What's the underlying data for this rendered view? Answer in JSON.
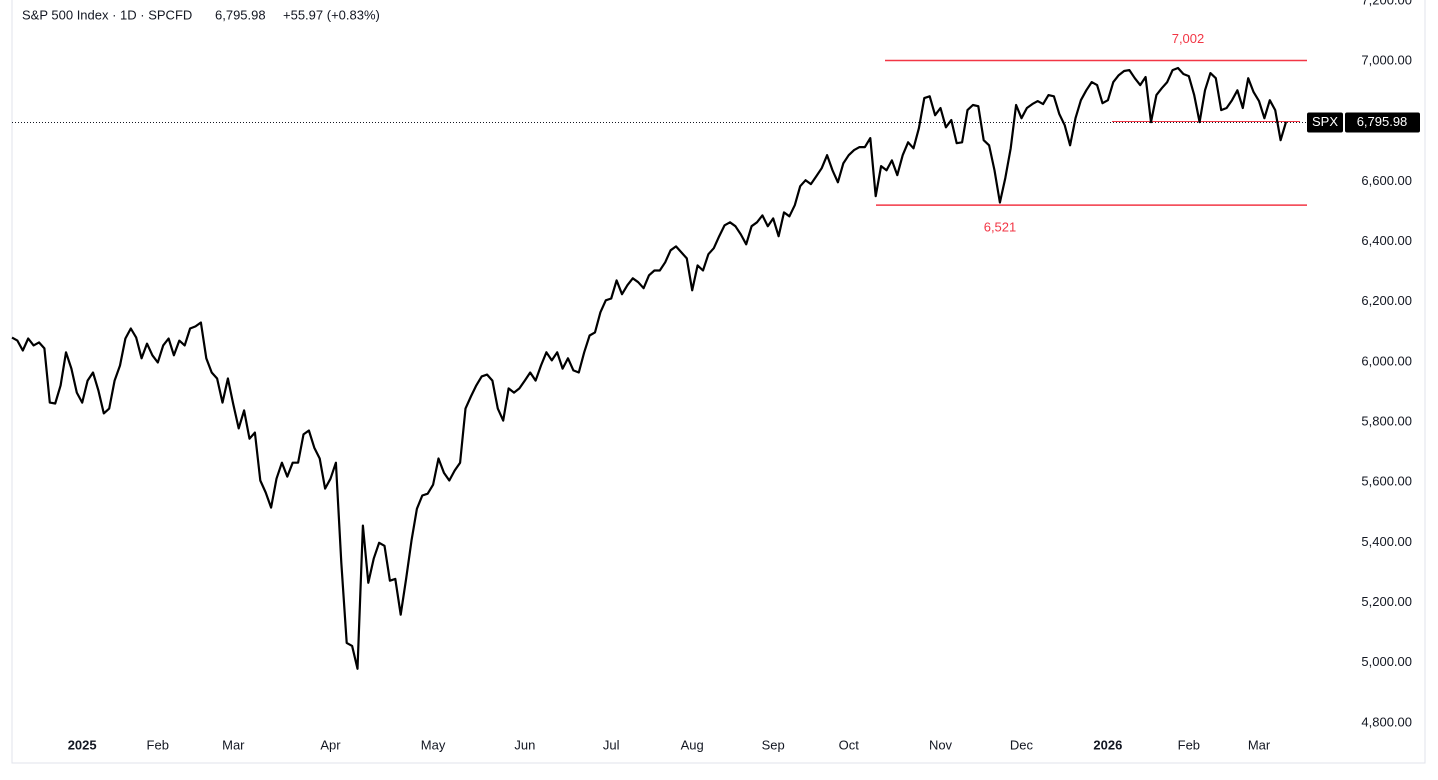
{
  "chart_data": {
    "type": "line",
    "title": {
      "symbol": "S&P 500 Index · 1D · SPCFD",
      "last": "6,795.98",
      "change": "+55.97 (+0.83%)"
    },
    "categories": [
      null,
      null,
      null,
      null,
      null,
      null,
      null,
      null,
      null,
      null,
      null,
      null,
      null,
      "2025",
      null,
      null,
      null,
      null,
      null,
      null,
      null,
      null,
      null,
      null,
      null,
      null,
      null,
      "Feb",
      null,
      null,
      null,
      null,
      null,
      null,
      null,
      null,
      null,
      null,
      null,
      null,
      null,
      "Mar",
      null,
      null,
      null,
      null,
      null,
      null,
      null,
      null,
      null,
      null,
      null,
      null,
      null,
      null,
      null,
      null,
      null,
      "Apr",
      null,
      null,
      null,
      null,
      null,
      null,
      null,
      null,
      null,
      null,
      null,
      null,
      null,
      null,
      null,
      null,
      null,
      null,
      "May",
      null,
      null,
      null,
      null,
      null,
      null,
      null,
      null,
      null,
      null,
      null,
      null,
      null,
      null,
      null,
      null,
      "Jun",
      null,
      null,
      null,
      null,
      null,
      null,
      null,
      null,
      null,
      null,
      null,
      null,
      null,
      null,
      null,
      "Jul",
      null,
      null,
      null,
      null,
      null,
      null,
      null,
      null,
      null,
      null,
      null,
      null,
      null,
      null,
      "Aug",
      null,
      null,
      null,
      null,
      null,
      null,
      null,
      null,
      null,
      null,
      null,
      null,
      null,
      null,
      "Sep",
      null,
      null,
      null,
      null,
      null,
      null,
      null,
      null,
      null,
      null,
      null,
      null,
      null,
      "Oct",
      null,
      null,
      null,
      null,
      null,
      null,
      null,
      null,
      null,
      null,
      null,
      null,
      null,
      null,
      null,
      null,
      "Nov",
      null,
      null,
      null,
      null,
      null,
      null,
      null,
      null,
      null,
      null,
      null,
      null,
      null,
      null,
      "Dec",
      null,
      null,
      null,
      null,
      null,
      null,
      null,
      null,
      null,
      null,
      null,
      null,
      null,
      null,
      null,
      "2026",
      null,
      null,
      null,
      null,
      null,
      null,
      null,
      null,
      null,
      null,
      null,
      null,
      null,
      null,
      "Feb",
      null,
      null,
      null,
      null,
      null,
      null,
      null,
      null,
      null,
      null,
      null,
      null,
      "Mar",
      null,
      null,
      null,
      null,
      null
    ],
    "series": [
      {
        "name": "SPX",
        "color": "#000000",
        "values": [
          6081,
          6071,
          6038,
          6078,
          6055,
          6065,
          6045,
          5865,
          5862,
          5922,
          6032,
          5978,
          5898,
          5865,
          5938,
          5965,
          5905,
          5829,
          5845,
          5938,
          5988,
          6078,
          6111,
          6081,
          6012,
          6061,
          6022,
          5998,
          6055,
          6078,
          6022,
          6071,
          6055,
          6111,
          6118,
          6131,
          6012,
          5965,
          5945,
          5865,
          5945,
          5859,
          5779,
          5839,
          5745,
          5765,
          5606,
          5566,
          5516,
          5612,
          5665,
          5619,
          5665,
          5665,
          5759,
          5772,
          5715,
          5679,
          5579,
          5612,
          5665,
          5333,
          5066,
          5056,
          4980,
          5456,
          5266,
          5346,
          5399,
          5389,
          5273,
          5279,
          5160,
          5279,
          5406,
          5512,
          5556,
          5562,
          5592,
          5679,
          5632,
          5606,
          5639,
          5665,
          5845,
          5885,
          5922,
          5952,
          5958,
          5938,
          5845,
          5805,
          5912,
          5898,
          5912,
          5938,
          5965,
          5938,
          5988,
          6032,
          6005,
          6032,
          5978,
          6012,
          5972,
          5965,
          6032,
          6088,
          6098,
          6165,
          6205,
          6211,
          6271,
          6225,
          6255,
          6278,
          6265,
          6245,
          6288,
          6304,
          6304,
          6331,
          6371,
          6384,
          6364,
          6344,
          6238,
          6321,
          6304,
          6358,
          6378,
          6418,
          6454,
          6464,
          6451,
          6424,
          6391,
          6451,
          6464,
          6487,
          6451,
          6477,
          6418,
          6497,
          6484,
          6521,
          6584,
          6604,
          6591,
          6617,
          6644,
          6687,
          6637,
          6597,
          6660,
          6687,
          6704,
          6714,
          6714,
          6744,
          6551,
          6651,
          6637,
          6670,
          6621,
          6687,
          6730,
          6710,
          6777,
          6877,
          6883,
          6820,
          6844,
          6780,
          6804,
          6727,
          6730,
          6837,
          6854,
          6850,
          6737,
          6720,
          6637,
          6530,
          6611,
          6710,
          6854,
          6810,
          6844,
          6857,
          6867,
          6857,
          6887,
          6883,
          6824,
          6787,
          6720,
          6810,
          6870,
          6903,
          6930,
          6920,
          6860,
          6870,
          6930,
          6953,
          6967,
          6970,
          6943,
          6920,
          6947,
          6797,
          6887,
          6910,
          6930,
          6970,
          6977,
          6957,
          6950,
          6887,
          6797,
          6903,
          6960,
          6943,
          6837,
          6844,
          6870,
          6903,
          6844,
          6943,
          6897,
          6867,
          6810,
          6870,
          6837,
          6737,
          6797
        ]
      }
    ],
    "price_line": {
      "tag": "SPX",
      "value": 6795.98,
      "label": "6,795.98"
    },
    "levels": [
      {
        "value": 7002,
        "label": "7,002"
      },
      {
        "value": 6521,
        "label": "6,521"
      }
    ],
    "level_color": "#f23645",
    "ylim": [
      4760,
      7203
    ],
    "yticks": [
      {
        "value": 4800,
        "label": "4,800.00"
      },
      {
        "value": 5000,
        "label": "5,000.00"
      },
      {
        "value": 5200,
        "label": "5,200.00"
      },
      {
        "value": 5400,
        "label": "5,400.00"
      },
      {
        "value": 5600,
        "label": "5,600.00"
      },
      {
        "value": 5800,
        "label": "5,800.00"
      },
      {
        "value": 6000,
        "label": "6,000.00"
      },
      {
        "value": 6200,
        "label": "6,200.00"
      },
      {
        "value": 6400,
        "label": "6,400.00"
      },
      {
        "value": 6600,
        "label": "6,600.00"
      },
      {
        "value": 6800,
        "label": "6,800.00"
      },
      {
        "value": 7000,
        "label": "7,000.00"
      },
      {
        "value": 7200,
        "label": "7,200.00"
      }
    ],
    "grid": false
  }
}
